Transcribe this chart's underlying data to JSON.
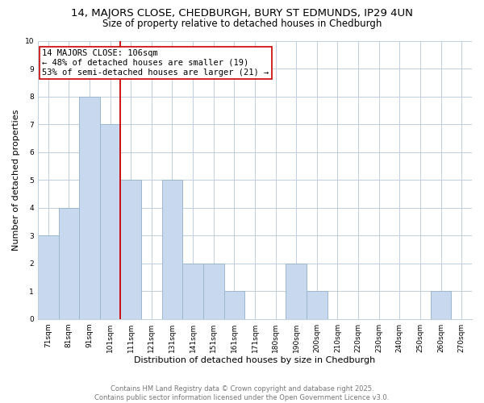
{
  "title": "14, MAJORS CLOSE, CHEDBURGH, BURY ST EDMUNDS, IP29 4UN",
  "subtitle": "Size of property relative to detached houses in Chedburgh",
  "xlabel": "Distribution of detached houses by size in Chedburgh",
  "ylabel": "Number of detached properties",
  "categories": [
    "71sqm",
    "81sqm",
    "91sqm",
    "101sqm",
    "111sqm",
    "121sqm",
    "131sqm",
    "141sqm",
    "151sqm",
    "161sqm",
    "171sqm",
    "180sqm",
    "190sqm",
    "200sqm",
    "210sqm",
    "220sqm",
    "230sqm",
    "240sqm",
    "250sqm",
    "260sqm",
    "270sqm"
  ],
  "values": [
    3,
    4,
    8,
    7,
    5,
    0,
    5,
    2,
    2,
    1,
    0,
    0,
    2,
    1,
    0,
    0,
    0,
    0,
    0,
    1,
    0
  ],
  "bar_color": "#c8d8ee",
  "bar_edge_color": "#9ab8d0",
  "grid_color": "#c0cfe0",
  "subject_line_color": "#cc0000",
  "subject_line_bar_index": 3,
  "ylim": [
    0,
    10
  ],
  "annotation_text": "14 MAJORS CLOSE: 106sqm\n← 48% of detached houses are smaller (19)\n53% of semi-detached houses are larger (21) →",
  "footer_line1": "Contains HM Land Registry data © Crown copyright and database right 2025.",
  "footer_line2": "Contains public sector information licensed under the Open Government Licence v3.0.",
  "title_fontsize": 9.5,
  "subtitle_fontsize": 8.5,
  "xlabel_fontsize": 8,
  "ylabel_fontsize": 8,
  "annotation_fontsize": 7.5,
  "tick_fontsize": 6.5,
  "footer_fontsize": 6,
  "annotation_box_edge_color": "#cc0000",
  "background_color": "#ffffff"
}
